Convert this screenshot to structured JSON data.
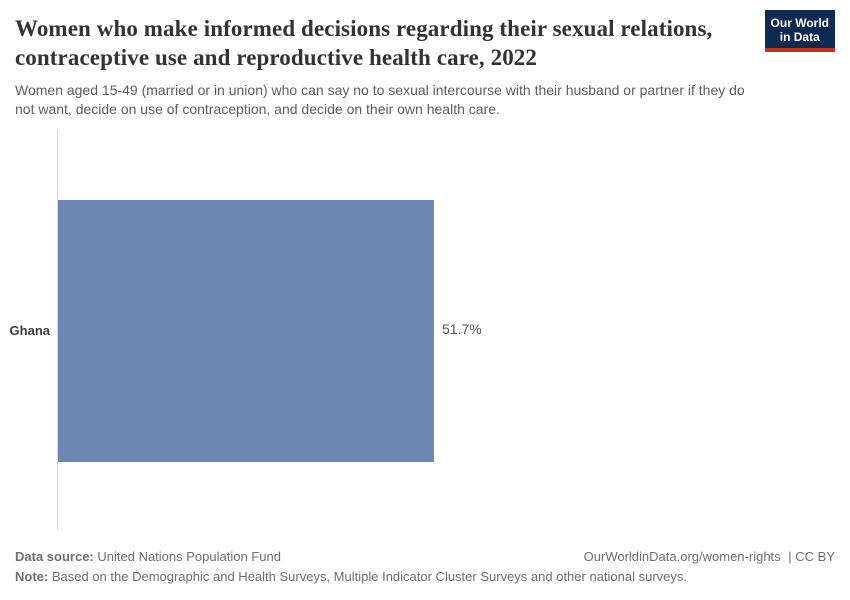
{
  "chart_data": {
    "type": "bar",
    "orientation": "horizontal",
    "title": "Women who make informed decisions regarding their sexual relations, contraceptive use and reproductive health care, 2022",
    "subtitle": "Women aged 15-49 (married or in union) who can say no to sexual intercourse with their husband or partner if they do not want, decide on use of contraception, and decide on their own health care.",
    "categories": [
      "Ghana"
    ],
    "values": [
      51.7
    ],
    "value_labels": [
      "51.7%"
    ],
    "unit": "%",
    "xlim": [
      0,
      51.7
    ],
    "grid": false,
    "legend": "none",
    "bar_color": "#6c87b1"
  },
  "logo": {
    "line1": "Our World",
    "line2": "in Data"
  },
  "colors": {
    "logo_bg": "#0d2a52",
    "logo_accent": "#c52f2a",
    "axis_line": "#d6d6d6"
  },
  "footer": {
    "data_source_label": "Data source:",
    "data_source": "United Nations Population Fund",
    "note_label": "Note:",
    "note": "Based on the Demographic and Health Surveys, Multiple Indicator Cluster Surveys and other national surveys.",
    "link": "OurWorldinData.org/women-rights",
    "license": "| CC BY"
  }
}
